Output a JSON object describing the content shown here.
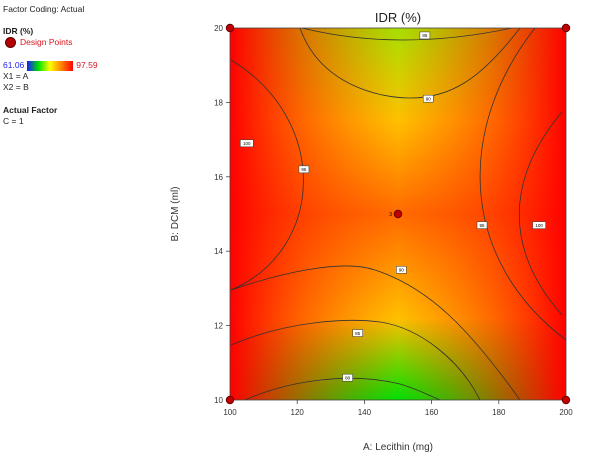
{
  "legend": {
    "factor_coding": "Factor Coding: Actual",
    "response": "IDR (%)",
    "design_points": "Design Points",
    "range_low": "61.06",
    "range_high": "97.59",
    "x1": "X1 = A",
    "x2": "X2 = B",
    "actual_factor_heading": "Actual Factor",
    "actual_factor_value": "C = 1"
  },
  "chart_data": {
    "type": "contour",
    "title": "IDR (%)",
    "xlabel": "A: Lecithin (mg)",
    "ylabel": "B: DCM (ml)",
    "xlim": [
      100,
      200
    ],
    "ylim": [
      10,
      20
    ],
    "xticks": [
      "100",
      "120",
      "140",
      "160",
      "180",
      "200"
    ],
    "yticks": [
      "10",
      "12",
      "14",
      "16",
      "18",
      "20"
    ],
    "colorscale": [
      "#00e000",
      "#ffff00",
      "#ff8000",
      "#ff0000"
    ],
    "design_points": [
      {
        "x": 100,
        "y": 10
      },
      {
        "x": 200,
        "y": 10
      },
      {
        "x": 100,
        "y": 20
      },
      {
        "x": 200,
        "y": 20
      },
      {
        "x": 150,
        "y": 15,
        "label": "3"
      }
    ],
    "contour_labels": [
      {
        "x": 158,
        "y": 19.8,
        "label": "85"
      },
      {
        "x": 159,
        "y": 18.1,
        "label": "90"
      },
      {
        "x": 105,
        "y": 16.9,
        "label": "100"
      },
      {
        "x": 122,
        "y": 16.2,
        "label": "95"
      },
      {
        "x": 175,
        "y": 14.7,
        "label": "95"
      },
      {
        "x": 192,
        "y": 14.7,
        "label": "100"
      },
      {
        "x": 151,
        "y": 13.5,
        "label": "90"
      },
      {
        "x": 138,
        "y": 11.8,
        "label": "85"
      },
      {
        "x": 135,
        "y": 10.6,
        "label": "80"
      }
    ]
  }
}
